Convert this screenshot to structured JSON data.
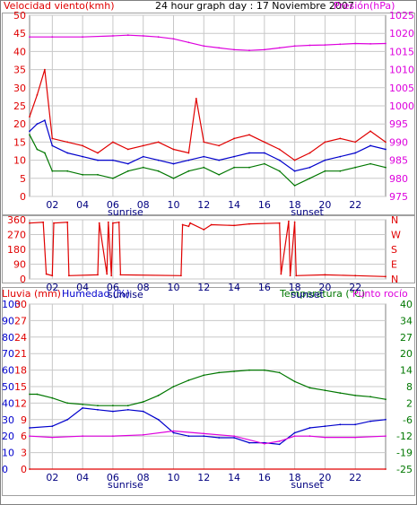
{
  "colors": {
    "red": "#e00000",
    "blue": "#0000cc",
    "green": "#007700",
    "magenta": "#dd00dd",
    "grid": "#c8c8c8",
    "axis": "#000000"
  },
  "chart_data": [
    {
      "type": "line",
      "title": "24 hour graph day : 17 Noviembre 2007",
      "ylabel_left": "Velocidad viento(kmh)",
      "ylabel_right": "Presión(hPa)",
      "x_ticks": [
        "02",
        "04",
        "06",
        "08",
        "10",
        "12",
        "14",
        "16",
        "18",
        "20",
        "22"
      ],
      "x_markers": [
        {
          "label": "sunrise",
          "at": "06"
        },
        {
          "label": "sunset",
          "at": "18"
        }
      ],
      "x_range_hours": [
        0.5,
        24
      ],
      "ylim_left": [
        0,
        50
      ],
      "y_ticks_left": [
        "0",
        "5",
        "10",
        "15",
        "20",
        "25",
        "30",
        "35",
        "40",
        "45",
        "50"
      ],
      "ylim_right": [
        975,
        1025
      ],
      "y_ticks_right": [
        "975",
        "980",
        "985",
        "990",
        "995",
        "1000",
        "1005",
        "1010",
        "1015",
        "1020",
        "1025"
      ],
      "grid": true,
      "series": [
        {
          "name": "Velocidad viento(kmh)",
          "axis": "left",
          "color": "red",
          "x": [
            0.5,
            1,
            1.5,
            2,
            3,
            4,
            5,
            6,
            7,
            8,
            9,
            10,
            11,
            11.5,
            12,
            13,
            14,
            15,
            16,
            17,
            18,
            19,
            20,
            21,
            22,
            23,
            24
          ],
          "y": [
            22,
            28,
            35,
            16,
            15,
            14,
            12,
            15,
            13,
            14,
            15,
            13,
            12,
            27,
            15,
            14,
            16,
            17,
            15,
            13,
            10,
            12,
            15,
            16,
            15,
            18,
            15
          ]
        },
        {
          "name": "Velocidad media",
          "axis": "left",
          "color": "blue",
          "x": [
            0.5,
            1,
            1.5,
            2,
            3,
            4,
            5,
            6,
            7,
            8,
            9,
            10,
            11,
            12,
            13,
            14,
            15,
            16,
            17,
            18,
            19,
            20,
            21,
            22,
            23,
            24
          ],
          "y": [
            18,
            20,
            21,
            14,
            12,
            11,
            10,
            10,
            9,
            11,
            10,
            9,
            10,
            11,
            10,
            11,
            12,
            12,
            10,
            7,
            8,
            10,
            11,
            12,
            14,
            13
          ]
        },
        {
          "name": "Racha mínima",
          "axis": "left",
          "color": "green",
          "x": [
            0.5,
            1,
            1.5,
            2,
            3,
            4,
            5,
            6,
            7,
            8,
            9,
            10,
            11,
            12,
            13,
            14,
            15,
            16,
            17,
            18,
            19,
            20,
            21,
            22,
            23,
            24
          ],
          "y": [
            17,
            13,
            12,
            7,
            7,
            6,
            6,
            5,
            7,
            8,
            7,
            5,
            7,
            8,
            6,
            8,
            8,
            9,
            7,
            3,
            5,
            7,
            7,
            8,
            9,
            8
          ]
        },
        {
          "name": "Presión(hPa)",
          "axis": "right",
          "color": "magenta",
          "x": [
            0.5,
            2,
            4,
            6,
            7,
            8,
            9,
            10,
            11,
            12,
            13,
            14,
            15,
            16,
            17,
            18,
            19,
            20,
            21,
            22,
            23,
            24
          ],
          "y": [
            1019,
            1019,
            1019,
            1019.3,
            1019.5,
            1019.3,
            1019,
            1018.5,
            1017.5,
            1016.5,
            1016,
            1015.5,
            1015.3,
            1015.5,
            1016,
            1016.5,
            1016.7,
            1016.8,
            1017,
            1017.2,
            1017.1,
            1017.2
          ]
        }
      ]
    },
    {
      "type": "line",
      "ylabel_left_ticks": [
        "0",
        "90",
        "180",
        "270",
        "360"
      ],
      "ylim_left": [
        0,
        360
      ],
      "y_labels_right": [
        "N",
        "W",
        "S",
        "E",
        "N"
      ],
      "x_ticks": [
        "02",
        "04",
        "06",
        "08",
        "10",
        "12",
        "14",
        "16",
        "18",
        "20",
        "22"
      ],
      "x_markers": [
        {
          "label": "sunrise",
          "at": "06"
        },
        {
          "label": "sunset",
          "at": "18"
        }
      ],
      "x_range_hours": [
        0.5,
        24
      ],
      "grid": true,
      "series": [
        {
          "name": "Dirección viento",
          "axis": "left",
          "color": "red",
          "x": [
            0.5,
            1.4,
            1.6,
            2.0,
            2.1,
            3.0,
            3.1,
            5.0,
            5.1,
            5.6,
            5.7,
            5.9,
            6.0,
            6.4,
            6.5,
            10.5,
            10.6,
            11.0,
            11.1,
            12.0,
            12.5,
            14.0,
            15.0,
            17.0,
            17.1,
            17.6,
            17.7,
            18.0,
            18.1,
            20.0,
            22.0,
            24.0
          ],
          "y": [
            340,
            345,
            30,
            20,
            340,
            345,
            20,
            25,
            340,
            30,
            345,
            20,
            340,
            345,
            25,
            20,
            330,
            320,
            340,
            300,
            330,
            325,
            335,
            340,
            30,
            350,
            20,
            345,
            20,
            25,
            20,
            15
          ]
        }
      ]
    },
    {
      "type": "line",
      "ylabel_left": "Lluvia (mm)",
      "ylabel_humidity": "Humedad (%)",
      "ylabel_right": "Temperatura (°C)",
      "ylabel_right2": "Punto rocío",
      "x_ticks": [
        "02",
        "04",
        "06",
        "08",
        "10",
        "12",
        "14",
        "16",
        "18",
        "20",
        "22"
      ],
      "x_markers": [
        {
          "label": "sunrise",
          "at": "06"
        },
        {
          "label": "sunset",
          "at": "18"
        }
      ],
      "x_range_hours": [
        0.5,
        24
      ],
      "grid": true,
      "y_ticks_rain": [
        "0",
        "3",
        "6",
        "9",
        "12",
        "15",
        "18",
        "21",
        "24",
        "27",
        "30"
      ],
      "y_ticks_humidity": [
        "0",
        "10",
        "20",
        "30",
        "40",
        "50",
        "60",
        "70",
        "80",
        "90",
        "100"
      ],
      "ylim_humidity": [
        0,
        100
      ],
      "y_ticks_temp": [
        "-25",
        "-19",
        "-12",
        "-6",
        "2",
        "8",
        "14",
        "20",
        "27",
        "34",
        "40"
      ],
      "ylim_temp": [
        -25,
        40
      ],
      "series": [
        {
          "name": "Lluvia (mm)",
          "axis": "rain",
          "color": "red",
          "x": [
            0.5,
            24
          ],
          "y": [
            0,
            0
          ]
        },
        {
          "name": "Humedad (%)",
          "axis": "humidity",
          "color": "blue",
          "x": [
            0.5,
            2,
            3,
            4,
            5,
            6,
            7,
            8,
            9,
            10,
            11,
            12,
            13,
            14,
            15,
            16,
            17,
            18,
            19,
            20,
            21,
            22,
            23,
            24
          ],
          "y": [
            25,
            26,
            30,
            37,
            36,
            35,
            36,
            35,
            30,
            22,
            20,
            20,
            19,
            19,
            16,
            16,
            15,
            22,
            25,
            26,
            27,
            27,
            29,
            30
          ]
        },
        {
          "name": "Temperatura (°C)",
          "axis": "temp",
          "color": "green",
          "x": [
            0.5,
            1,
            2,
            3,
            4,
            5,
            6,
            7,
            8,
            9,
            10,
            11,
            12,
            13,
            14,
            15,
            16,
            17,
            18,
            19,
            20,
            21,
            22,
            23,
            24
          ],
          "y": [
            4.5,
            4.5,
            3,
            1,
            0.5,
            0,
            0,
            0,
            1.5,
            4,
            7.5,
            10,
            12,
            13,
            13.5,
            14,
            14,
            13,
            9.5,
            7,
            6,
            5,
            4,
            3.5,
            2.5
          ]
        },
        {
          "name": "Punto rocío",
          "axis": "temp",
          "color": "magenta",
          "x": [
            0.5,
            2,
            4,
            6,
            8,
            10,
            12,
            14,
            16,
            17,
            18,
            19,
            20,
            22,
            24
          ],
          "y": [
            -12,
            -12.5,
            -12,
            -12,
            -11.5,
            -10,
            -11,
            -12,
            -15,
            -14,
            -12,
            -12,
            -12.5,
            -12.5,
            -12
          ]
        }
      ]
    }
  ]
}
